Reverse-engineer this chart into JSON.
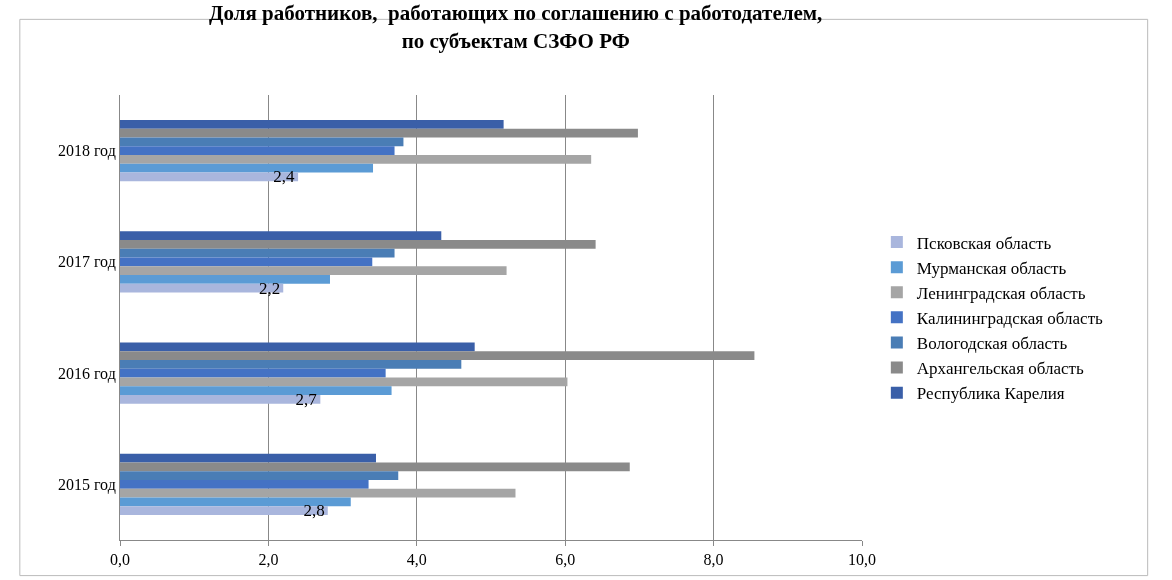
{
  "chart_data": {
    "type": "bar",
    "orientation": "horizontal",
    "title": "Доля работников,  работающих по соглашению с работодателем,\nпо субъектам СЗФО РФ",
    "categories": [
      "2018 год",
      "2017 год",
      "2016 год",
      "2015 год"
    ],
    "series": [
      {
        "name": "Республика Карелия",
        "color": "#3a5fa8",
        "values": [
          5.17,
          4.33,
          4.78,
          3.45
        ]
      },
      {
        "name": "Архангельская область",
        "color": "#8a8a8a",
        "values": [
          6.98,
          6.41,
          8.55,
          6.87
        ]
      },
      {
        "name": "Вологодская область",
        "color": "#4a7db5",
        "values": [
          3.82,
          3.7,
          4.6,
          3.75
        ]
      },
      {
        "name": "Калининградская область",
        "color": "#4472c4",
        "values": [
          3.7,
          3.4,
          3.58,
          3.35
        ]
      },
      {
        "name": "Ленинградская область",
        "color": "#a5a5a5",
        "values": [
          6.35,
          5.21,
          6.03,
          5.33
        ]
      },
      {
        "name": "Мурманская область",
        "color": "#5b9bd5",
        "values": [
          3.41,
          2.83,
          3.66,
          3.11
        ]
      },
      {
        "name": "Псковская область",
        "color": "#a9b6dd",
        "values": [
          2.4,
          2.2,
          2.7,
          2.8
        ],
        "value_labels": [
          "2,4",
          "2,2",
          "2,7",
          "2,8"
        ]
      }
    ],
    "xlim": [
      0,
      10
    ],
    "xticks": [
      {
        "value": 0,
        "label": "0,0"
      },
      {
        "value": 2,
        "label": "2,0"
      },
      {
        "value": 4,
        "label": "4,0"
      },
      {
        "value": 6,
        "label": "6,0"
      },
      {
        "value": 8,
        "label": "8,0"
      },
      {
        "value": 10,
        "label": "10,0"
      }
    ],
    "grid": "x",
    "legend": "right"
  }
}
